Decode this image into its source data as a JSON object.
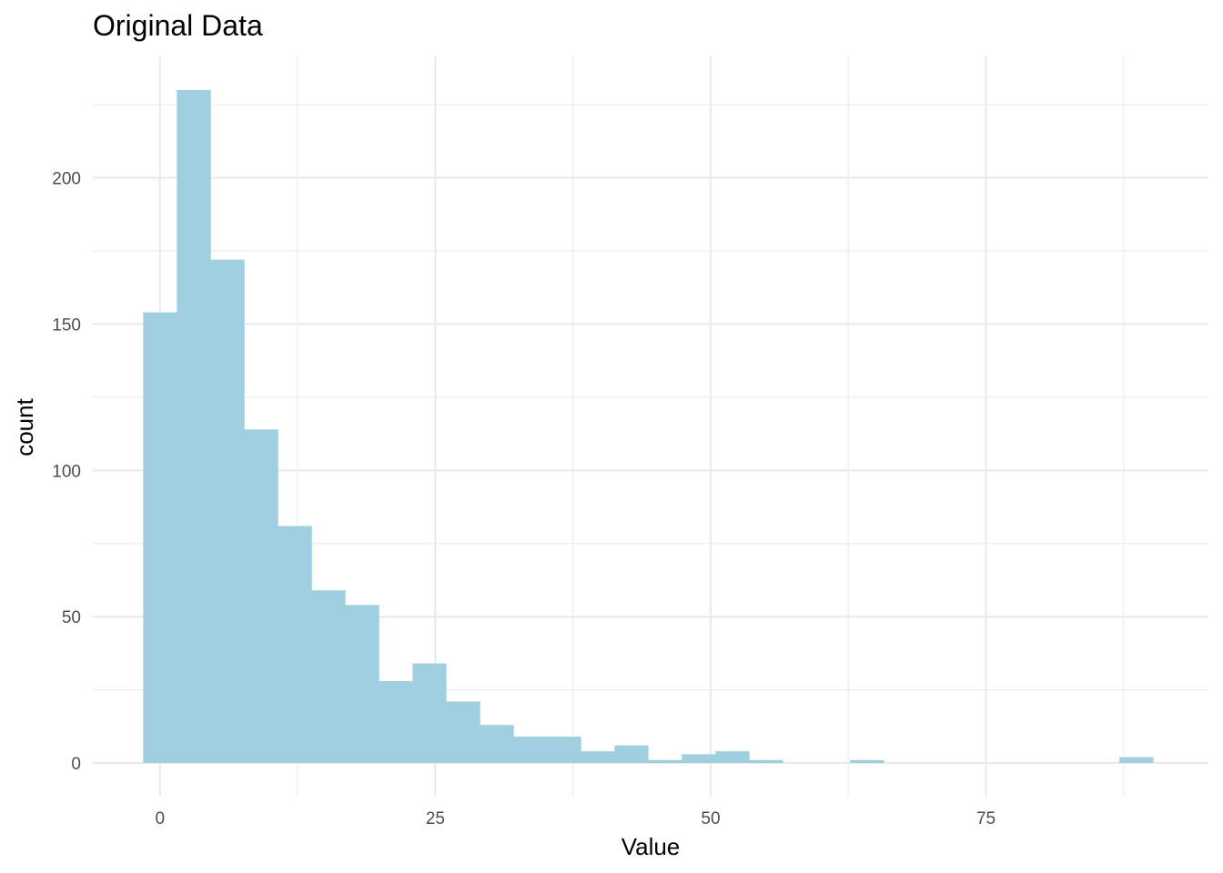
{
  "chart_data": {
    "type": "bar",
    "subtype": "histogram",
    "title": "Original Data",
    "xlabel": "Value",
    "ylabel": "count",
    "bin_width": 3.0567,
    "bins": [
      {
        "x0": -1.53,
        "x1": 1.53,
        "count": 154
      },
      {
        "x0": 1.53,
        "x1": 4.59,
        "count": 230
      },
      {
        "x0": 4.59,
        "x1": 7.64,
        "count": 172
      },
      {
        "x0": 7.64,
        "x1": 10.7,
        "count": 114
      },
      {
        "x0": 10.7,
        "x1": 13.76,
        "count": 81
      },
      {
        "x0": 13.76,
        "x1": 16.81,
        "count": 59
      },
      {
        "x0": 16.81,
        "x1": 19.87,
        "count": 54
      },
      {
        "x0": 19.87,
        "x1": 22.93,
        "count": 28
      },
      {
        "x0": 22.93,
        "x1": 25.98,
        "count": 34
      },
      {
        "x0": 25.98,
        "x1": 29.04,
        "count": 21
      },
      {
        "x0": 29.04,
        "x1": 32.1,
        "count": 13
      },
      {
        "x0": 32.1,
        "x1": 35.15,
        "count": 9
      },
      {
        "x0": 35.15,
        "x1": 38.21,
        "count": 9
      },
      {
        "x0": 38.21,
        "x1": 41.27,
        "count": 4
      },
      {
        "x0": 41.27,
        "x1": 44.32,
        "count": 6
      },
      {
        "x0": 44.32,
        "x1": 47.38,
        "count": 1
      },
      {
        "x0": 47.38,
        "x1": 50.44,
        "count": 3
      },
      {
        "x0": 50.44,
        "x1": 53.49,
        "count": 4
      },
      {
        "x0": 53.49,
        "x1": 56.55,
        "count": 1
      },
      {
        "x0": 56.55,
        "x1": 59.61,
        "count": 0
      },
      {
        "x0": 59.61,
        "x1": 62.66,
        "count": 0
      },
      {
        "x0": 62.66,
        "x1": 65.72,
        "count": 1
      },
      {
        "x0": 65.72,
        "x1": 68.78,
        "count": 0
      },
      {
        "x0": 68.78,
        "x1": 71.83,
        "count": 0
      },
      {
        "x0": 71.83,
        "x1": 74.89,
        "count": 0
      },
      {
        "x0": 74.89,
        "x1": 77.95,
        "count": 0
      },
      {
        "x0": 77.95,
        "x1": 81.0,
        "count": 0
      },
      {
        "x0": 81.0,
        "x1": 84.06,
        "count": 0
      },
      {
        "x0": 84.06,
        "x1": 87.12,
        "count": 0
      },
      {
        "x0": 87.12,
        "x1": 90.17,
        "count": 2
      }
    ],
    "x_ticks": [
      0,
      25,
      50,
      75
    ],
    "x_tick_labels": [
      "0",
      "25",
      "50",
      "75"
    ],
    "y_ticks": [
      0,
      50,
      100,
      150,
      200
    ],
    "y_tick_labels": [
      "0",
      "50",
      "100",
      "150",
      "200"
    ],
    "xlim": [
      -6.1,
      95.2
    ],
    "ylim": [
      -11.5,
      241.5
    ],
    "bar_color": "#a0cfe0",
    "grid": true,
    "legend": "none"
  }
}
